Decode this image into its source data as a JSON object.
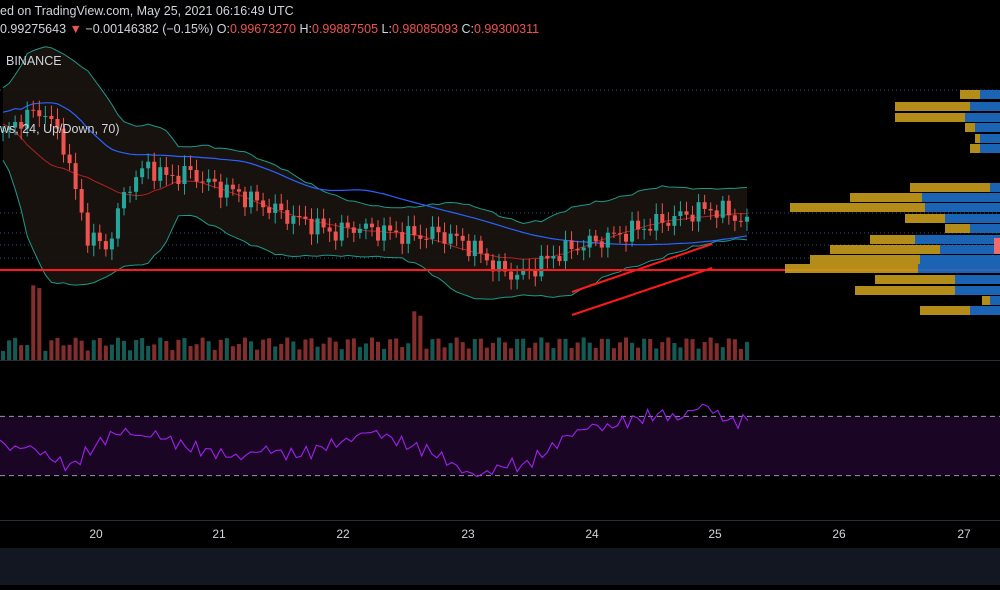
{
  "header": {
    "published": "ed on TradingView.com, May 25, 2021 06:16:49 UTC",
    "price": "0.99275643",
    "change_arrow": "▼",
    "change": "−0.00146382 (−0.15%)",
    "open_label": "O:",
    "open": "0.99673270",
    "high_label": "H:",
    "high": "0.99887505",
    "low_label": "L:",
    "low": "0.98085093",
    "close_label": "C:",
    "close": "0.99300311"
  },
  "exchange": "BINANCE",
  "indicator_label": "ws, 24, Up/Down, 70)",
  "colors": {
    "background": "#000000",
    "up": "#26a69a",
    "down": "#ef5350",
    "support_line": "#ff1a1a",
    "rsi_line": "#a020f0",
    "rsi_band": "#1a0624",
    "ma_blue": "#2962ff",
    "ma_red": "#b22222",
    "bollinger": "#1e9a8a",
    "vp_gold": "#c89b1c",
    "vp_blue": "#1e6fc7",
    "bottom_bar": "#131722"
  },
  "chart_data": {
    "type": "candlestick",
    "x_axis": {
      "tick_labels": [
        "20",
        "21",
        "22",
        "23",
        "24",
        "25",
        "26",
        "27"
      ]
    },
    "price_series": {
      "name": "",
      "approx_closes": [
        1.022,
        1.028,
        1.03,
        1.018,
        0.99,
        0.985,
        1.005,
        1.012,
        1.008,
        1.01,
        1.006,
        1.004,
        1.001,
        0.998,
        0.995,
        0.993,
        0.99,
        0.992,
        0.991,
        0.99,
        0.989,
        0.99,
        0.988,
        0.984,
        0.978,
        0.976,
        0.98,
        0.984,
        0.986,
        0.988,
        0.99,
        0.992,
        0.994,
        0.996,
        0.998,
        0.997,
        0.993
      ]
    },
    "support_level_line": true,
    "rising_channel": true,
    "volume_profile": true,
    "rsi": {
      "upper_band": 70,
      "lower_band": 30,
      "approx_values": [
        52,
        48,
        50,
        45,
        40,
        36,
        44,
        52,
        58,
        60,
        56,
        58,
        54,
        50,
        48,
        46,
        44,
        42,
        46,
        48,
        45,
        44,
        46,
        50,
        52,
        55,
        60,
        58,
        54,
        50,
        48,
        44,
        38,
        32,
        30,
        34,
        38,
        36,
        42,
        48,
        56,
        60,
        64,
        62,
        66,
        68,
        70,
        72,
        68,
        74,
        78,
        70,
        66,
        68
      ]
    }
  }
}
